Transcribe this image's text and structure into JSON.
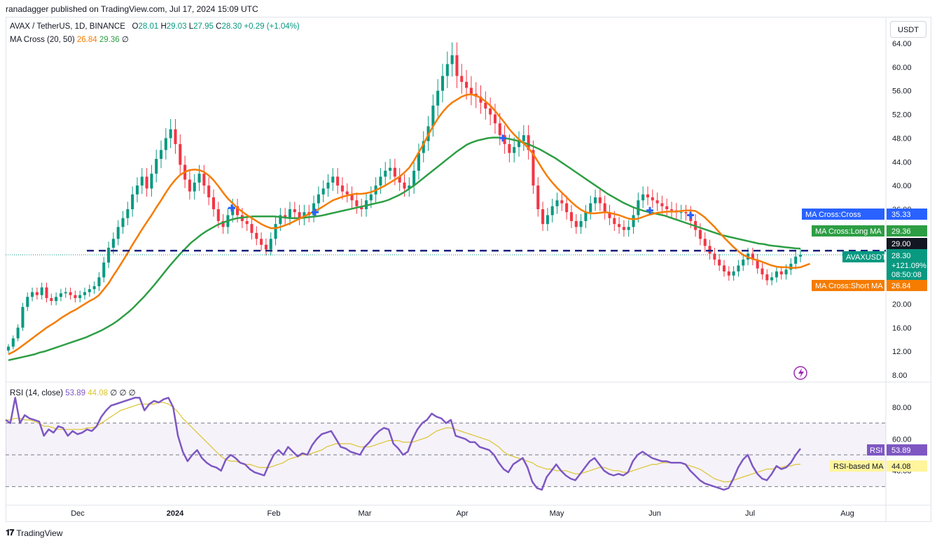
{
  "header": {
    "published_line": "ranadagger published on TradingView.com, Jul 17, 2024 15:09 UTC"
  },
  "currency_button": "USDT",
  "legend": {
    "symbol": "AVAX / TetherUS, 1D, BINANCE",
    "o_label": "O",
    "o_val": "28.01",
    "h_label": "H",
    "h_val": "29.03",
    "l_label": "L",
    "l_val": "27.95",
    "c_label": "C",
    "c_val": "28.30",
    "change": "+0.29 (+1.04%)",
    "ma_name": "MA Cross (20, 50)",
    "ma_short": "26.84",
    "ma_long": "29.36",
    "ma_extra": "∅",
    "rsi_name": "RSI (14, close)",
    "rsi_val": "53.89",
    "rsi_ma": "44.08",
    "rsi_extra": "∅ ∅ ∅"
  },
  "footer": {
    "brand": "TradingView"
  },
  "chart_data": {
    "type": "candlestick",
    "colors": {
      "up": "#089981",
      "down": "#f23645",
      "ma_short": "#f57c00",
      "ma_long": "#2e9e44",
      "rsi": "#7e57c2",
      "rsi_ma": "#dcc532",
      "level": "#2962ff"
    },
    "price_axis": {
      "ticks": [
        "64.00",
        "60.00",
        "56.00",
        "52.00",
        "48.00",
        "44.00",
        "40.00",
        "36.00",
        "32.00",
        "28.00",
        "24.00",
        "20.00",
        "16.00",
        "12.00",
        "8.00"
      ],
      "range": [
        8,
        64
      ]
    },
    "time_axis": {
      "ticks": [
        "Dec",
        "2024",
        "Feb",
        "Mar",
        "Apr",
        "May",
        "Jun",
        "Jul",
        "Aug"
      ]
    },
    "horizontal_level": 29.0,
    "price_labels": [
      {
        "text": "MA Cross:Cross",
        "value": "35.33",
        "color": "#2962ff"
      },
      {
        "text": "MA Cross:Long MA",
        "value": "29.36",
        "color": "#2e9e44"
      },
      {
        "text": "",
        "value": "29.00",
        "color": "#131722"
      },
      {
        "text": "AVAXUSDT",
        "value": "28.30",
        "extra1": "+121.09%",
        "extra2": "08:50:08",
        "color": "#089981"
      },
      {
        "text": "MA Cross:Short MA",
        "value": "26.84",
        "color": "#f57c00"
      }
    ],
    "close": [
      12.8,
      14.2,
      16.0,
      19.5,
      21.2,
      22.0,
      21.5,
      22.8,
      21.0,
      20.5,
      21.2,
      21.8,
      22.0,
      21.5,
      21.0,
      21.5,
      22.0,
      22.5,
      23.0,
      24.5,
      27.0,
      29.5,
      31.0,
      33.0,
      34.5,
      36.0,
      38.5,
      40.0,
      41.5,
      39.5,
      42.0,
      44.5,
      46.0,
      48.0,
      49.5,
      47.0,
      43.5,
      41.0,
      39.0,
      40.5,
      42.0,
      40.0,
      38.0,
      36.0,
      34.0,
      33.0,
      35.0,
      36.5,
      35.0,
      34.0,
      33.5,
      32.0,
      31.0,
      30.0,
      29.2,
      31.0,
      33.5,
      35.0,
      34.5,
      36.0,
      35.5,
      34.5,
      35.5,
      35.0,
      37.0,
      38.5,
      39.5,
      40.5,
      41.5,
      40.0,
      39.0,
      38.5,
      37.5,
      36.5,
      36.0,
      37.5,
      38.5,
      40.0,
      41.5,
      42.5,
      43.0,
      41.5,
      40.5,
      39.5,
      40.0,
      42.5,
      45.5,
      47.5,
      50.0,
      53.5,
      56.0,
      58.5,
      60.5,
      62.0,
      58.5,
      57.5,
      56.5,
      55.5,
      55.0,
      54.0,
      53.0,
      52.0,
      50.5,
      48.5,
      47.0,
      45.5,
      46.5,
      47.5,
      48.5,
      46.0,
      40.0,
      36.0,
      33.5,
      35.0,
      36.5,
      37.5,
      37.0,
      35.5,
      34.0,
      33.0,
      34.0,
      35.5,
      37.0,
      38.0,
      37.0,
      35.5,
      34.5,
      33.5,
      33.0,
      32.5,
      33.0,
      35.0,
      37.5,
      38.5,
      38.0,
      37.5,
      37.0,
      36.5,
      36.0,
      35.8,
      35.5,
      35.5,
      35.3,
      34.0,
      32.5,
      31.0,
      29.8,
      28.5,
      27.5,
      26.5,
      25.5,
      24.8,
      25.5,
      26.5,
      27.5,
      28.5,
      27.5,
      26.0,
      25.0,
      24.0,
      24.5,
      25.5,
      25.0,
      25.8,
      26.8,
      28.0,
      28.3
    ],
    "ma_short": [
      11.5,
      11.9,
      12.4,
      13.0,
      13.6,
      14.2,
      14.8,
      15.4,
      16.0,
      16.5,
      17.0,
      17.6,
      18.1,
      18.6,
      19.0,
      19.5,
      20.0,
      20.5,
      20.9,
      21.5,
      22.5,
      23.5,
      24.8,
      26.0,
      27.3,
      28.6,
      30.0,
      31.3,
      32.6,
      33.8,
      35.0,
      36.3,
      37.5,
      38.8,
      40.0,
      41.0,
      41.8,
      42.3,
      42.6,
      42.7,
      42.6,
      42.3,
      41.7,
      40.9,
      39.9,
      38.8,
      37.8,
      37.0,
      36.2,
      35.6,
      35.0,
      34.5,
      34.0,
      33.5,
      33.1,
      32.8,
      32.8,
      33.0,
      33.3,
      33.6,
      34.0,
      34.4,
      34.8,
      35.2,
      35.6,
      36.0,
      36.5,
      37.0,
      37.5,
      37.8,
      38.1,
      38.3,
      38.5,
      38.6,
      38.6,
      38.7,
      38.9,
      39.2,
      39.6,
      40.0,
      40.5,
      41.0,
      41.5,
      42.2,
      43.0,
      44.2,
      45.6,
      47.0,
      48.6,
      50.0,
      51.3,
      52.4,
      53.3,
      54.0,
      54.5,
      55.0,
      55.3,
      55.4,
      55.2,
      54.8,
      54.2,
      53.5,
      52.6,
      51.6,
      50.6,
      49.5,
      48.6,
      47.8,
      47.1,
      46.3,
      45.3,
      44.0,
      42.7,
      41.5,
      40.5,
      39.6,
      38.8,
      38.0,
      37.2,
      36.5,
      35.9,
      35.5,
      35.3,
      35.3,
      35.4,
      35.5,
      35.4,
      35.2,
      35.0,
      34.7,
      34.4,
      34.3,
      34.4,
      34.7,
      35.0,
      35.2,
      35.4,
      35.5,
      35.6,
      35.6,
      35.6,
      35.7,
      35.8,
      35.8,
      35.7,
      35.2,
      34.6,
      33.8,
      33.0,
      32.1,
      31.2,
      30.4,
      29.6,
      28.9,
      28.3,
      27.9,
      27.6,
      27.4,
      27.1,
      26.8,
      26.5,
      26.3,
      26.2,
      26.2,
      26.1,
      26.1,
      26.2,
      26.5,
      26.8
    ],
    "ma_long": [
      10.5,
      10.7,
      10.9,
      11.1,
      11.3,
      11.5,
      11.8,
      12.0,
      12.3,
      12.6,
      12.9,
      13.2,
      13.5,
      13.8,
      14.1,
      14.4,
      14.8,
      15.2,
      15.6,
      16.1,
      16.6,
      17.2,
      17.9,
      18.6,
      19.4,
      20.3,
      21.2,
      22.2,
      23.2,
      24.3,
      25.4,
      26.5,
      27.5,
      28.5,
      29.4,
      30.3,
      31.0,
      31.7,
      32.3,
      32.8,
      33.3,
      33.7,
      34.0,
      34.3,
      34.5,
      34.6,
      34.7,
      34.8,
      34.8,
      34.8,
      34.8,
      34.8,
      34.7,
      34.6,
      34.5,
      34.5,
      34.5,
      34.6,
      34.7,
      34.8,
      34.9,
      35.1,
      35.3,
      35.5,
      35.7,
      35.9,
      36.1,
      36.3,
      36.5,
      36.7,
      36.9,
      37.1,
      37.3,
      37.6,
      38.0,
      38.4,
      38.9,
      39.5,
      40.1,
      40.8,
      41.5,
      42.2,
      42.9,
      43.6,
      44.3,
      45.0,
      45.7,
      46.3,
      46.9,
      47.3,
      47.6,
      47.8,
      48.0,
      48.1,
      48.1,
      48.0,
      47.9,
      47.7,
      47.5,
      47.2,
      46.9,
      46.5,
      46.1,
      45.6,
      45.1,
      44.6,
      44.0,
      43.4,
      42.8,
      42.2,
      41.6,
      41.0,
      40.4,
      39.8,
      39.2,
      38.6,
      38.1,
      37.6,
      37.1,
      36.7,
      36.3,
      36.0,
      35.7,
      35.5,
      35.3,
      35.1,
      34.9,
      34.6,
      34.3,
      34.0,
      33.7,
      33.4,
      33.1,
      32.8,
      32.5,
      32.2,
      31.9,
      31.6,
      31.4,
      31.2,
      31.0,
      30.8,
      30.6,
      30.4,
      30.2,
      30.1,
      29.9,
      29.8,
      29.7,
      29.6,
      29.5,
      29.4,
      29.36
    ],
    "rsi": {
      "axis_ticks": [
        "80.00",
        "60.00",
        "40.00"
      ],
      "range": [
        20,
        95
      ],
      "upper": 70,
      "lower": 30,
      "mid": 50,
      "values": [
        72,
        70,
        86,
        70,
        75,
        73,
        72,
        71,
        62,
        66,
        64,
        68,
        67,
        62,
        65,
        63,
        64,
        66,
        65,
        68,
        74,
        78,
        81,
        82,
        83,
        84,
        85,
        86,
        86,
        78,
        82,
        84,
        83,
        85,
        86,
        80,
        62,
        52,
        46,
        50,
        53,
        48,
        45,
        43,
        42,
        40,
        47,
        50,
        48,
        45,
        44,
        41,
        39,
        38,
        37,
        44,
        50,
        53,
        50,
        55,
        52,
        49,
        51,
        50,
        56,
        60,
        63,
        64,
        65,
        60,
        55,
        54,
        52,
        51,
        50,
        55,
        58,
        62,
        65,
        67,
        66,
        57,
        54,
        50,
        52,
        60,
        66,
        70,
        72,
        76,
        74,
        73,
        70,
        72,
        62,
        61,
        60,
        58,
        58,
        55,
        54,
        53,
        50,
        45,
        41,
        39,
        44,
        46,
        48,
        42,
        33,
        29,
        28,
        36,
        40,
        44,
        40,
        37,
        35,
        34,
        38,
        42,
        46,
        48,
        44,
        40,
        38,
        37,
        38,
        37,
        39,
        46,
        50,
        52,
        50,
        48,
        47,
        46,
        46,
        45,
        45,
        45,
        44,
        40,
        37,
        34,
        32,
        31,
        30,
        29,
        28,
        29,
        35,
        42,
        47,
        50,
        43,
        38,
        35,
        34,
        38,
        43,
        41,
        42,
        45,
        50,
        53.89
      ],
      "ma_values": [
        72,
        72,
        73,
        73,
        72,
        72,
        71,
        70,
        68,
        68,
        67,
        66,
        66,
        66,
        66,
        66,
        66,
        67,
        67,
        68,
        70,
        72,
        74,
        76,
        78,
        79,
        80,
        81,
        82,
        82,
        82,
        82,
        83,
        83,
        82,
        80,
        77,
        73,
        70,
        67,
        64,
        61,
        58,
        55,
        52,
        49,
        47,
        46,
        46,
        45,
        44,
        44,
        43,
        42,
        42,
        42,
        43,
        44,
        45,
        47,
        48,
        49,
        50,
        50,
        51,
        52,
        53,
        55,
        56,
        57,
        57,
        57,
        57,
        56,
        55,
        55,
        55,
        56,
        57,
        58,
        59,
        59,
        59,
        58,
        58,
        58,
        59,
        60,
        61,
        63,
        65,
        66,
        67,
        67,
        66,
        65,
        64,
        63,
        62,
        61,
        60,
        59,
        57,
        55,
        52,
        50,
        49,
        48,
        47,
        46,
        45,
        43,
        42,
        41,
        41,
        40,
        40,
        40,
        39,
        38,
        38,
        39,
        40,
        41,
        42,
        42,
        41,
        40,
        40,
        39,
        39,
        40,
        41,
        42,
        43,
        44,
        44,
        45,
        45,
        45,
        45,
        45,
        44,
        43,
        42,
        41,
        39,
        37,
        35,
        34,
        33,
        33,
        34,
        35,
        36,
        37,
        38,
        39,
        40,
        41,
        41,
        42,
        42,
        43,
        43,
        44,
        44.08
      ]
    }
  }
}
